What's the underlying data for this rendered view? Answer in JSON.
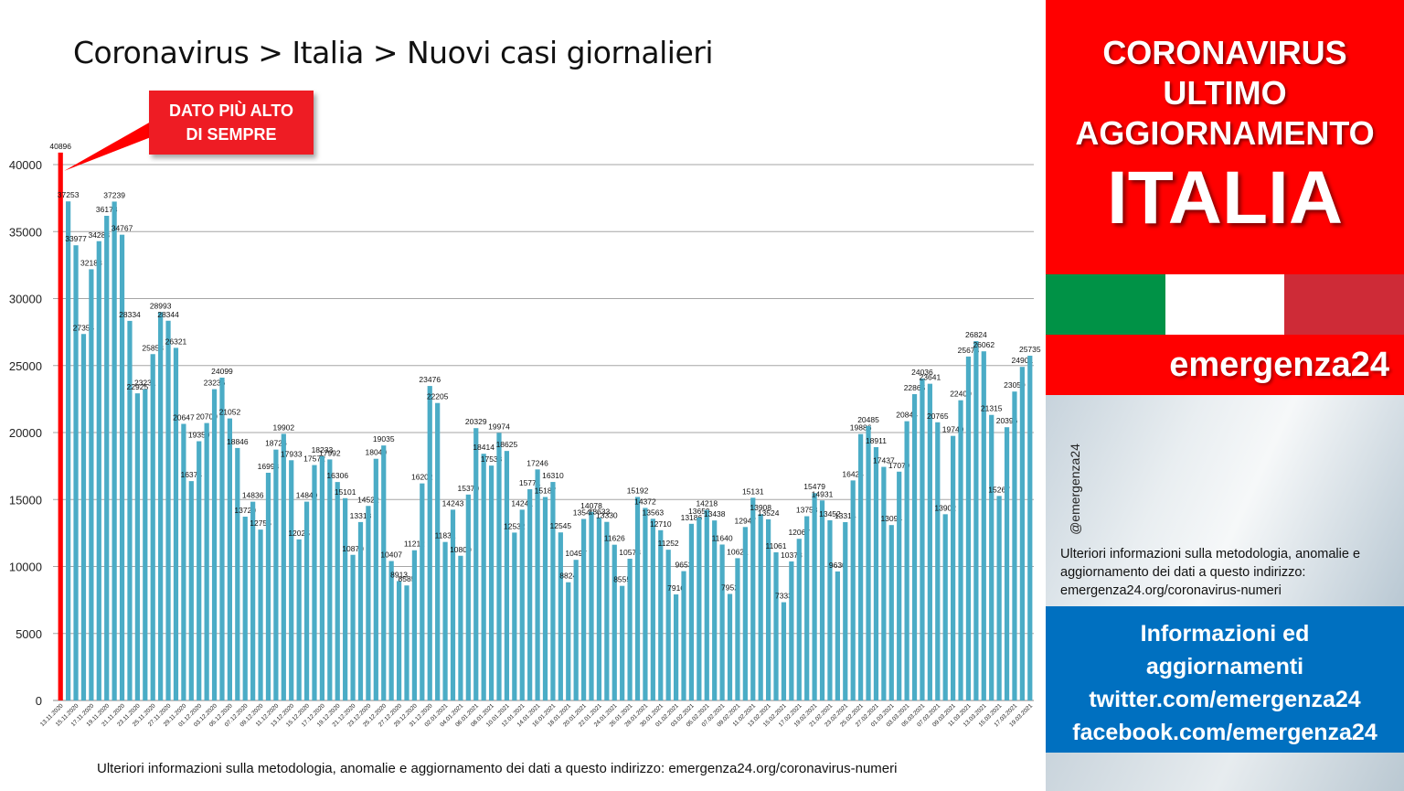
{
  "title": "Coronavirus > Italia > Nuovi casi giornalieri",
  "callout": {
    "line1": "DATO PIÙ ALTO",
    "line2": "DI SEMPRE"
  },
  "footer": "Ulteriori informazioni sulla metodologia, anomalie e aggiornamento dei dati a questo indirizzo: emergenza24.org/coronavirus-numeri",
  "panel": {
    "line1": "CORONAVIRUS",
    "line2": "ULTIMO",
    "line3": "AGGIORNAMENTO",
    "country": "ITALIA",
    "brand": "emergenza24",
    "handle": "@emergenza24",
    "info": "Ulteriori informazioni sulla metodologia, anomalie e aggiornamento dei dati a questo indirizzo: emergenza24.org/coronavirus-numeri",
    "blue1": "Informazioni ed",
    "blue2": "aggiornamenti",
    "blue3": "twitter.com/emergenza24",
    "blue4": "facebook.com/emergenza24"
  },
  "colors": {
    "bar": "#4bacc6",
    "highlight": "#ff0000",
    "flag_green": "#009246",
    "flag_white": "#ffffff",
    "flag_red": "#ce2b37"
  },
  "chart_data": {
    "type": "bar",
    "title": "",
    "xlabel": "",
    "ylabel": "",
    "ylim": [
      0,
      40000
    ],
    "yticks": [
      0,
      5000,
      10000,
      15000,
      20000,
      25000,
      30000,
      35000,
      40000
    ],
    "grid": true,
    "highlight_index": 0,
    "categories": [
      "13.11.2020",
      "14.11.2020",
      "15.11.2020",
      "16.11.2020",
      "17.11.2020",
      "18.11.2020",
      "19.11.2020",
      "20.11.2020",
      "21.11.2020",
      "22.11.2020",
      "23.11.2020",
      "24.11.2020",
      "25.11.2020",
      "26.11.2020",
      "27.11.2020",
      "28.11.2020",
      "29.11.2020",
      "30.11.2020",
      "01.12.2020",
      "02.12.2020",
      "03.12.2020",
      "04.12.2020",
      "05.12.2020",
      "06.12.2020",
      "07.12.2020",
      "08.12.2020",
      "09.12.2020",
      "10.12.2020",
      "11.12.2020",
      "12.12.2020",
      "13.12.2020",
      "14.12.2020",
      "15.12.2020",
      "16.12.2020",
      "17.12.2020",
      "18.12.2020",
      "19.12.2020",
      "20.12.2020",
      "21.12.2020",
      "22.12.2020",
      "23.12.2020",
      "24.12.2020",
      "25.12.2020",
      "26.12.2020",
      "27.12.2020",
      "28.12.2020",
      "29.12.2020",
      "30.12.2020",
      "31.12.2020",
      "01.01.2021",
      "02.01.2021",
      "03.01.2021",
      "04.01.2021",
      "05.01.2021",
      "06.01.2021",
      "07.01.2021",
      "08.01.2021",
      "09.01.2021",
      "10.01.2021",
      "11.01.2021",
      "12.01.2021",
      "13.01.2021",
      "14.01.2021",
      "15.01.2021",
      "16.01.2021",
      "17.01.2021",
      "18.01.2021",
      "19.01.2021",
      "20.01.2021",
      "21.01.2021",
      "22.01.2021",
      "23.01.2021",
      "24.01.2021",
      "25.01.2021",
      "26.01.2021",
      "27.01.2021",
      "28.01.2021",
      "29.01.2021",
      "30.01.2021",
      "31.01.2021",
      "01.02.2021",
      "02.02.2021",
      "03.02.2021",
      "04.02.2021",
      "05.02.2021",
      "06.02.2021",
      "07.02.2021",
      "08.02.2021",
      "09.02.2021",
      "10.02.2021",
      "11.02.2021",
      "12.02.2021",
      "13.02.2021",
      "14.02.2021",
      "15.02.2021",
      "16.02.2021",
      "17.02.2021",
      "18.02.2021",
      "19.02.2021",
      "20.02.2021",
      "21.02.2021",
      "22.02.2021",
      "23.02.2021",
      "24.02.2021",
      "25.02.2021",
      "26.02.2021",
      "27.02.2021",
      "28.02.2021",
      "01.03.2021",
      "02.03.2021",
      "03.03.2021",
      "04.03.2021",
      "05.03.2021",
      "06.03.2021",
      "07.03.2021",
      "08.03.2021",
      "09.03.2021",
      "10.03.2021",
      "11.03.2021",
      "12.03.2021",
      "13.03.2021",
      "14.03.2021",
      "15.03.2021",
      "16.03.2021",
      "17.03.2021",
      "18.03.2021",
      "19.03.2021"
    ],
    "values": [
      40896,
      37253,
      33977,
      27354,
      32188,
      34283,
      36178,
      37239,
      34767,
      28334,
      22925,
      23231,
      25853,
      28993,
      28344,
      26321,
      20647,
      16374,
      19350,
      20709,
      23236,
      24099,
      21052,
      18846,
      13720,
      14836,
      12755,
      16998,
      18726,
      19902,
      17933,
      12025,
      14840,
      17572,
      18233,
      17992,
      16306,
      15101,
      10870,
      13318,
      14522,
      18040,
      19035,
      10407,
      8913,
      8585,
      11212,
      16202,
      23476,
      22205,
      11831,
      14243,
      10800,
      15370,
      20329,
      18414,
      17533,
      19974,
      18625,
      12532,
      14241,
      15771,
      17246,
      15187,
      16310,
      12545,
      8824,
      10497,
      13548,
      14078,
      13633,
      13330,
      11626,
      8555,
      10578,
      15192,
      14372,
      13563,
      12710,
      11252,
      7916,
      9653,
      13186,
      13659,
      14218,
      13438,
      11640,
      7952,
      10621,
      12947,
      15131,
      13908,
      13524,
      11061,
      7333,
      10378,
      12067,
      13753,
      15479,
      14931,
      13452,
      9630,
      13314,
      16424,
      19886,
      20485,
      18911,
      17437,
      13094,
      17079,
      20844,
      22865,
      24036,
      23641,
      20765,
      13902,
      19749,
      22409,
      25673,
      26824,
      26062,
      21315,
      15267,
      20396,
      23059,
      24901,
      25735
    ],
    "tick_labels": [
      "13.11.2020",
      "15.11.2020",
      "17.11.2020",
      "19.11.2020",
      "21.11.2020",
      "23.11.2020",
      "25.11.2020",
      "27.11.2020",
      "29.11.2020",
      "01.12.2020",
      "03.12.2020",
      "05.12.2020",
      "07.12.2020",
      "09.12.2020",
      "11.12.2020",
      "13.12.2020",
      "15.12.2020",
      "17.12.2020",
      "19.12.2020",
      "21.12.2020",
      "23.12.2020",
      "25.12.2020",
      "27.12.2020",
      "29.12.2020",
      "31.12.2020",
      "02.01.2021",
      "04.01.2021",
      "06.01.2021",
      "08.01.2021",
      "10.01.2021",
      "12.01.2021",
      "14.01.2021",
      "16.01.2021",
      "18.01.2021",
      "20.01.2021",
      "22.01.2021",
      "24.01.2021",
      "26.01.2021",
      "28.01.2021",
      "30.01.2021",
      "01.02.2021",
      "03.02.2021",
      "05.02.2021",
      "07.02.2021",
      "09.02.2021",
      "11.02.2021",
      "13.02.2021",
      "15.02.2021",
      "17.02.2021",
      "19.02.2021",
      "21.02.2021",
      "23.02.2021",
      "25.02.2021",
      "27.02.2021",
      "01.03.2021",
      "03.03.2021",
      "05.03.2021",
      "07.03.2021",
      "09.03.2021",
      "11.03.2021",
      "13.03.2021",
      "15.03.2021",
      "17.03.2021",
      "19.03.2021"
    ]
  }
}
